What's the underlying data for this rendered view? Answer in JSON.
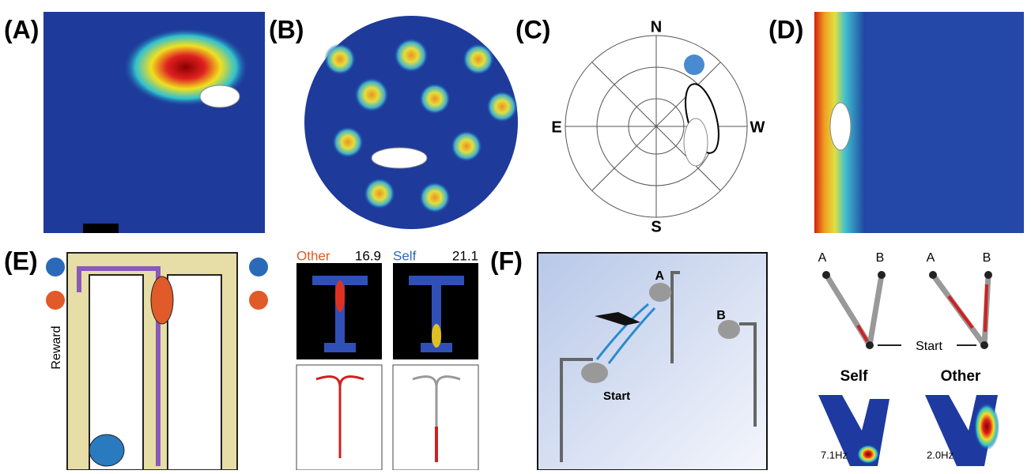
{
  "panels": {
    "labels": [
      "(A)",
      "(B)",
      "(C)",
      "(D)",
      "(E)",
      "(F)"
    ]
  },
  "compass": {
    "north": "N",
    "south": "S",
    "east": "E",
    "west": "W"
  },
  "panel_e": {
    "reward": "Reward",
    "other": "Other",
    "other_rate": 16.9,
    "self": "Self",
    "self_rate": 21.1
  },
  "panel_f": {
    "scene": {
      "a": "A",
      "b": "B",
      "start": "Start"
    },
    "trajectories": {
      "left_a": "A",
      "left_b": "B",
      "right_a": "A",
      "right_b": "B",
      "start": "Start"
    },
    "maps": {
      "self": "Self",
      "other": "Other",
      "self_peak": "7.1Hz",
      "other_peak": "2.0Hz"
    }
  }
}
